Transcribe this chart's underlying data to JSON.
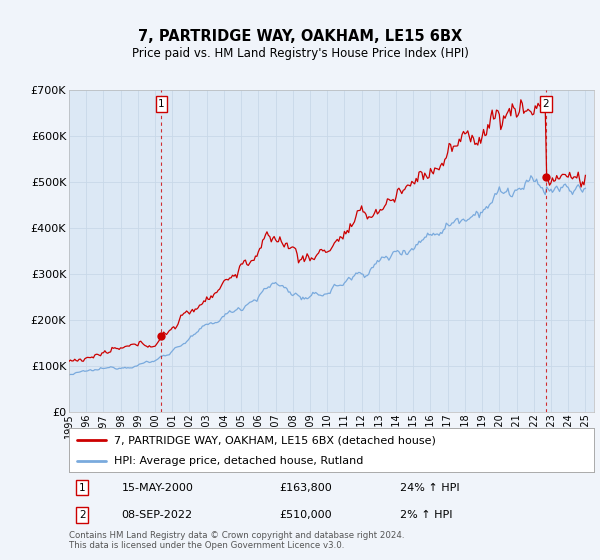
{
  "title": "7, PARTRIDGE WAY, OAKHAM, LE15 6BX",
  "subtitle": "Price paid vs. HM Land Registry's House Price Index (HPI)",
  "background_color": "#f0f4fa",
  "plot_bg_color": "#dce8f5",
  "ylim": [
    0,
    700000
  ],
  "yticks": [
    0,
    100000,
    200000,
    300000,
    400000,
    500000,
    600000,
    700000
  ],
  "ytick_labels": [
    "£0",
    "£100K",
    "£200K",
    "£300K",
    "£400K",
    "£500K",
    "£600K",
    "£700K"
  ],
  "xmin": 1995.0,
  "xmax": 2025.5,
  "legend_line1": "7, PARTRIDGE WAY, OAKHAM, LE15 6BX (detached house)",
  "legend_line2": "HPI: Average price, detached house, Rutland",
  "label1_date": "15-MAY-2000",
  "label1_price": "£163,800",
  "label1_hpi": "24% ↑ HPI",
  "label2_date": "08-SEP-2022",
  "label2_price": "£510,000",
  "label2_hpi": "2% ↑ HPI",
  "footnote": "Contains HM Land Registry data © Crown copyright and database right 2024.\nThis data is licensed under the Open Government Licence v3.0.",
  "line1_color": "#cc0000",
  "line2_color": "#7aaadd",
  "marker1_x": 2000.37,
  "marker1_y": 163800,
  "marker2_x": 2022.69,
  "marker2_y": 510000,
  "grid_color": "#c8d8e8"
}
